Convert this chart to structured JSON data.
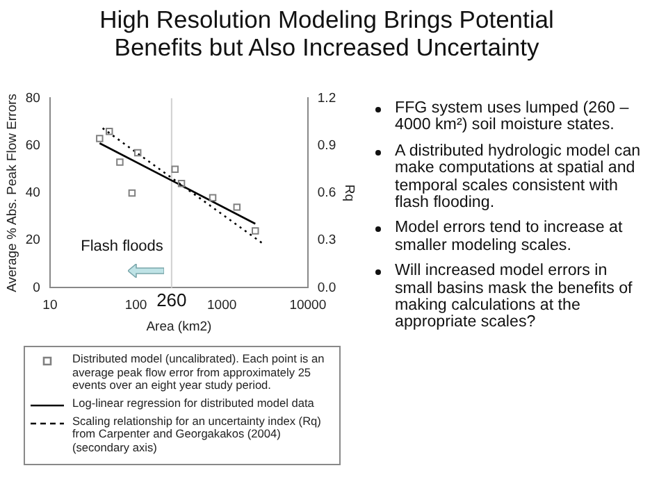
{
  "chart_data": {
    "type": "scatter",
    "title": "High Resolution Modeling Brings Potential Benefits but Also Increased Uncertainty",
    "xlabel": "Area (km2)",
    "ylabel": "Average % Abs. Peak Flow Errors",
    "y2label": "Rq",
    "log": "x",
    "xlim": [
      10,
      10000
    ],
    "xticks": [
      10,
      100,
      1000,
      10000
    ],
    "ylim": [
      0,
      80
    ],
    "yticks": [
      0,
      20,
      40,
      60,
      80
    ],
    "y2lim": [
      0,
      1.2
    ],
    "y2ticks": [
      {
        "value": 0,
        "label": "0.0"
      },
      0.3,
      0.6,
      0.9,
      1.2
    ],
    "legend": "bottom",
    "series": [
      {
        "marker": "square",
        "name": "Distributed model (uncalibrated). Each point is an average peak flow error from approximately 25 events over an eight year study period.",
        "color": "#808080",
        "x": [
          37.8,
          49,
          65,
          90,
          105,
          285,
          339,
          783,
          1496,
          2450
        ],
        "values": [
          63,
          66,
          53,
          40,
          57,
          50,
          44,
          38,
          34,
          24
        ]
      },
      {
        "type": "line",
        "name": "Log-linear regression for distributed model data",
        "color": "#000000",
        "line_style": "solid",
        "x": [
          37.8,
          2450
        ],
        "values": [
          61,
          27
        ]
      },
      {
        "type": "line",
        "axis": "y2",
        "name": "Scaling relationship for an uncertainty index (Rq) from Carpenter and Georgakakos (2004) (secondary axis)",
        "color": "#000000",
        "line_style": "dotted",
        "x": [
          41,
          2990
        ],
        "values": [
          1.01,
          0.28
        ]
      }
    ],
    "ref_lines": [
      {
        "axis": "x",
        "value": 260,
        "label": "260",
        "color": "#d0d0d0"
      }
    ],
    "annotations": [
      "Flash floods",
      "FFG system uses lumped (260 – 4000 km²) soil moisture states.",
      "A distributed hydrologic model can make computations at spatial and temporal scales consistent with flash flooding.",
      "Model errors tend to increase at smaller modeling scales.",
      "Will increased model errors in small basins mask the benefits of making calculations at the appropriate scales?"
    ]
  }
}
